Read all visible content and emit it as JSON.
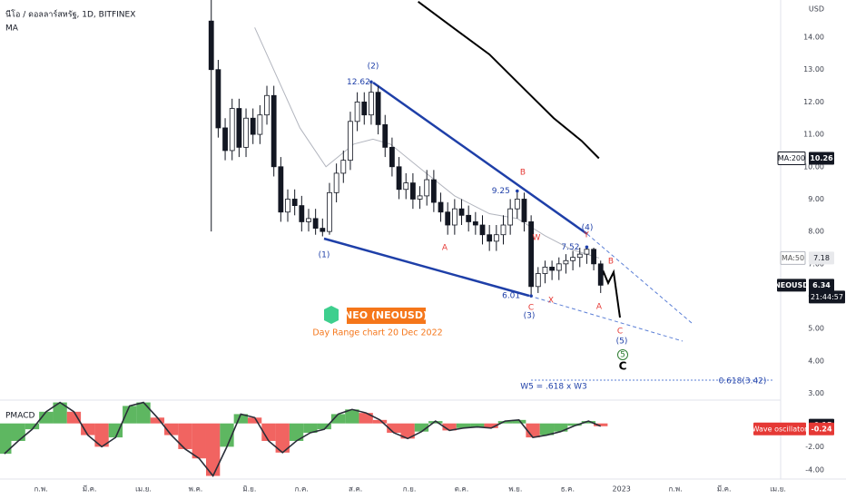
{
  "chart_data": [
    {
      "type": "candlestick",
      "title": "นีโอ / ดอลลาร์สหรัฐ, 1D, BITFINEX",
      "subtitle": "MA",
      "y_axis_label": "USD",
      "symbol": "NEOUSD",
      "time": "21:44:57",
      "up_color": "#ffffff",
      "down_color": "#131722",
      "x": [
        129,
        133,
        137,
        141,
        145,
        149,
        153,
        157,
        161,
        165,
        169,
        173,
        177,
        181,
        185,
        189,
        193,
        197,
        201,
        205,
        209,
        213,
        217,
        221,
        225,
        229,
        233,
        237,
        241,
        245,
        249,
        253,
        257,
        261,
        265,
        269,
        273,
        277,
        281,
        285,
        289,
        293,
        297,
        301,
        305,
        309,
        313,
        317,
        321,
        325,
        329,
        333,
        337,
        341,
        345,
        349,
        353
      ],
      "open": [
        14.5,
        13.0,
        11.2,
        10.5,
        11.8,
        10.6,
        11.5,
        11.0,
        11.6,
        12.2,
        10.0,
        8.6,
        9.0,
        8.8,
        8.3,
        8.4,
        8.1,
        8.0,
        9.2,
        9.8,
        10.2,
        11.4,
        12.0,
        11.6,
        12.3,
        11.3,
        10.6,
        10.0,
        9.3,
        9.5,
        9.0,
        9.1,
        9.6,
        8.9,
        8.6,
        8.2,
        8.7,
        8.5,
        8.3,
        8.2,
        7.9,
        7.7,
        7.9,
        8.2,
        8.7,
        9.0,
        8.3,
        6.3,
        6.7,
        6.9,
        6.8,
        7.0,
        7.1,
        7.2,
        7.3,
        7.45,
        7.0
      ],
      "high": [
        15.2,
        13.3,
        11.5,
        12.1,
        12.1,
        11.8,
        11.8,
        11.9,
        12.5,
        12.5,
        10.3,
        9.3,
        9.3,
        9.1,
        8.7,
        8.7,
        8.4,
        9.5,
        10.1,
        10.5,
        11.7,
        12.3,
        12.3,
        12.62,
        12.5,
        11.6,
        10.9,
        10.3,
        9.8,
        9.8,
        9.4,
        9.9,
        9.9,
        9.2,
        8.9,
        9.0,
        9.0,
        8.8,
        8.6,
        8.5,
        8.2,
        8.2,
        8.5,
        9.0,
        9.25,
        9.2,
        8.5,
        6.9,
        7.1,
        7.1,
        7.2,
        7.3,
        7.4,
        7.5,
        7.52,
        7.5,
        7.1
      ],
      "low": [
        8.0,
        10.9,
        10.2,
        10.2,
        10.3,
        10.3,
        10.7,
        10.7,
        11.3,
        9.7,
        8.3,
        8.3,
        8.5,
        8.0,
        8.0,
        7.9,
        7.85,
        7.9,
        8.9,
        9.5,
        9.9,
        11.1,
        11.3,
        11.3,
        11.0,
        10.3,
        9.7,
        9.0,
        9.0,
        8.7,
        8.7,
        8.8,
        8.6,
        8.3,
        7.9,
        7.9,
        8.2,
        8.0,
        7.9,
        7.6,
        7.4,
        7.4,
        7.6,
        7.9,
        8.4,
        8.0,
        6.01,
        6.1,
        6.4,
        6.5,
        6.5,
        6.7,
        6.8,
        6.9,
        7.0,
        6.8,
        6.1
      ],
      "close": [
        13.0,
        11.2,
        10.5,
        11.8,
        10.6,
        11.5,
        11.0,
        11.6,
        12.2,
        10.0,
        8.6,
        9.0,
        8.8,
        8.3,
        8.4,
        8.1,
        8.0,
        9.2,
        9.8,
        10.2,
        11.4,
        12.0,
        11.6,
        12.3,
        11.3,
        10.6,
        10.0,
        9.3,
        9.5,
        9.0,
        9.1,
        9.6,
        8.9,
        8.6,
        8.2,
        8.7,
        8.5,
        8.3,
        8.2,
        7.9,
        7.7,
        7.9,
        8.2,
        8.7,
        9.0,
        8.3,
        6.3,
        6.7,
        6.9,
        6.8,
        7.0,
        7.1,
        7.2,
        7.3,
        7.45,
        7.0,
        6.34
      ],
      "lines": [
        {
          "name": "MA:50",
          "color": "#b2b5be",
          "x": [
            154,
            180,
            195,
            211,
            222,
            232,
            248,
            269,
            289,
            305,
            321,
            336,
            352
          ],
          "values": [
            14.3,
            11.2,
            10.0,
            10.7,
            10.85,
            10.7,
            10.0,
            9.1,
            8.55,
            8.4,
            7.87,
            7.45,
            7.18
          ]
        },
        {
          "name": "MA:200",
          "color": "#000000",
          "x": [
            248,
            268,
            289,
            310,
            326,
            342,
            352
          ],
          "values": [
            15.1,
            14.3,
            13.47,
            12.35,
            11.5,
            10.8,
            10.26
          ]
        }
      ],
      "ylim": [
        2.82,
        15.15
      ],
      "yticks": [
        {
          "value": 14,
          "label": "14.00"
        },
        {
          "value": 13,
          "label": "13.00"
        },
        {
          "value": 12,
          "label": "12.00"
        },
        {
          "value": 11,
          "label": "11.00"
        },
        {
          "value": 10,
          "label": "10.00"
        },
        {
          "value": 9,
          "label": "9.00"
        },
        {
          "value": 8,
          "label": "8.00"
        },
        {
          "value": 7,
          "label": "7.00"
        },
        {
          "value": 6,
          "label": "6.00"
        },
        {
          "value": 5,
          "label": "5.00"
        },
        {
          "value": 4,
          "label": "4.00"
        },
        {
          "value": 3,
          "label": "3.00"
        }
      ],
      "xlim": [
        8,
        456
      ],
      "xticks": [
        {
          "value": 31,
          "label": "ก.พ."
        },
        {
          "value": 59,
          "label": "มี.ค."
        },
        {
          "value": 90,
          "label": "เม.ย."
        },
        {
          "value": 120,
          "label": "พ.ค."
        },
        {
          "value": 151,
          "label": "มิ.ย."
        },
        {
          "value": 181,
          "label": "ก.ค."
        },
        {
          "value": 212,
          "label": "ส.ค."
        },
        {
          "value": 243,
          "label": "ก.ย."
        },
        {
          "value": 273,
          "label": "ต.ค."
        },
        {
          "value": 304,
          "label": "พ.ย."
        },
        {
          "value": 334,
          "label": "ธ.ค."
        },
        {
          "value": 365,
          "label": "2023"
        },
        {
          "value": 396,
          "label": "ก.พ."
        },
        {
          "value": 424,
          "label": "มี.ค."
        },
        {
          "value": 455,
          "label": "เม.ย."
        }
      ],
      "grid": false,
      "annotations": [
        {
          "text": "(2)",
          "color": "#1e3fa8"
        },
        {
          "text": "(1)",
          "color": "#1e3fa8"
        },
        {
          "text": "B",
          "color": "#e53935"
        },
        {
          "text": "A",
          "color": "#e53935"
        },
        {
          "text": "W",
          "color": "#e53935"
        },
        {
          "text": "(4)",
          "color": "#1e3fa8"
        },
        {
          "text": "Y",
          "color": "#e53935"
        },
        {
          "text": "B",
          "color": "#e53935"
        },
        {
          "text": "X",
          "color": "#e53935"
        },
        {
          "text": "C",
          "color": "#e53935"
        },
        {
          "text": "(3)",
          "color": "#1e3fa8"
        },
        {
          "text": "A",
          "color": "#e53935"
        },
        {
          "text": "C",
          "color": "#e53935"
        },
        {
          "text": "(5)",
          "color": "#1e3fa8"
        },
        {
          "text": "5",
          "color": "#2e7d32"
        },
        {
          "text": "C",
          "color": "#000000"
        },
        {
          "text": "W5 = .618 x W3",
          "color": "#1e3fa8"
        },
        {
          "text": "0.618(3.42)",
          "color": "#1e3fa8"
        }
      ],
      "logo": {
        "title": "NEO (NEOUSD)",
        "caption": "Day Range chart 20 Dec 2022"
      }
    },
    {
      "type": "bar",
      "title": "PMACD",
      "series_name": "Wave oscillator",
      "up_color": "#4caf50",
      "down_color": "#ef5350",
      "line_value": -0.15,
      "x": [
        10,
        18,
        26,
        34,
        42,
        50,
        58,
        66,
        74,
        82,
        90,
        98,
        106,
        114,
        122,
        130,
        138,
        146,
        154,
        162,
        170,
        178,
        186,
        194,
        202,
        210,
        218,
        226,
        234,
        242,
        250,
        258,
        266,
        274,
        282,
        290,
        298,
        306,
        314,
        322,
        330,
        338,
        346,
        353
      ],
      "values": [
        -2.6,
        -1.5,
        -0.5,
        1.0,
        1.8,
        1.0,
        -1.0,
        -2.0,
        -1.2,
        1.5,
        1.8,
        0.5,
        -1.0,
        -2.2,
        -3.0,
        -4.5,
        -2.0,
        0.8,
        0.5,
        -1.5,
        -2.5,
        -1.5,
        -0.8,
        -0.5,
        0.8,
        1.2,
        0.9,
        0.3,
        -0.8,
        -1.3,
        -0.7,
        0.2,
        -0.6,
        -0.4,
        -0.3,
        -0.4,
        0.2,
        0.3,
        -1.2,
        -1.0,
        -0.7,
        -0.2,
        0.2,
        -0.24
      ],
      "xlim": [
        8,
        456
      ],
      "ylim": [
        -4.77,
        2
      ],
      "yticks": [
        {
          "value": -2,
          "label": "-2.00"
        },
        {
          "value": -4,
          "label": "-4.00"
        }
      ]
    }
  ]
}
